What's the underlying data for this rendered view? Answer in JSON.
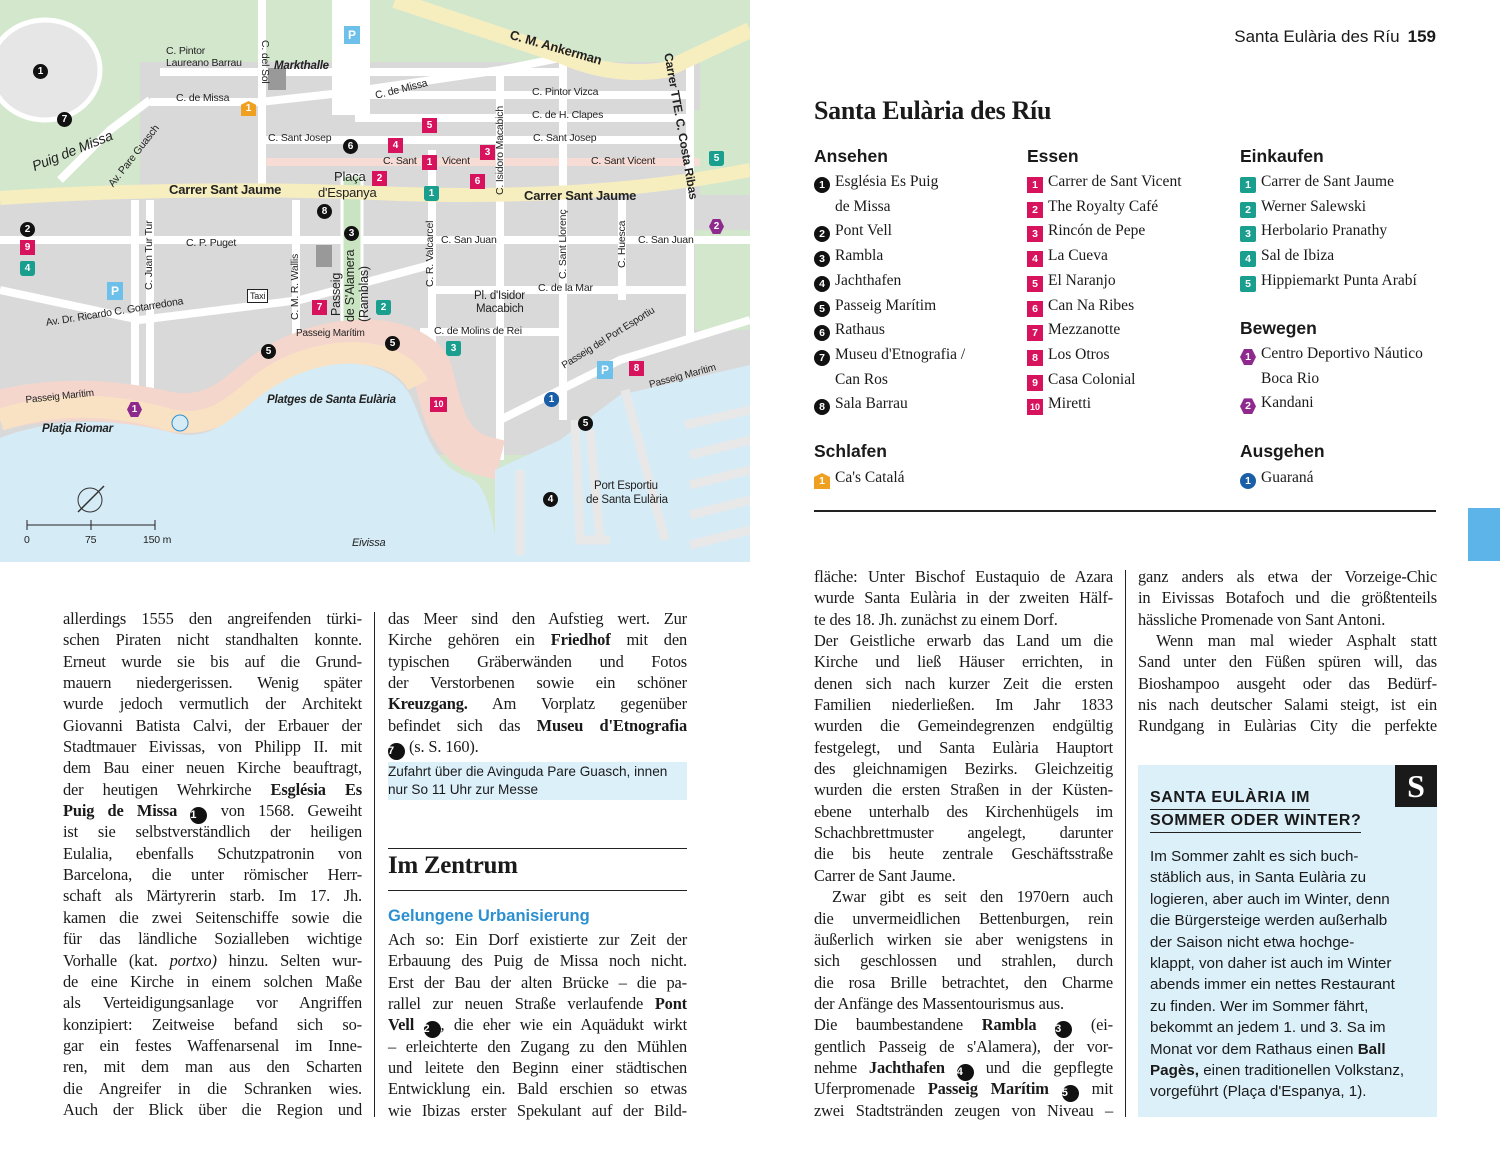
{
  "header": {
    "running_title": "Santa Eulària des Ríu",
    "page_number": "159"
  },
  "colors": {
    "sight": "#111111",
    "eat": "#d8135e",
    "shop": "#1a9e8e",
    "move": "#8e2a8e",
    "sleep": "#f0a020",
    "out": "#1b5ea8",
    "accent": "#2b8fd0",
    "tab": "#5cb4e8",
    "box": "#dcf0fa"
  },
  "map": {
    "labels": [
      "C. Pintor",
      "Laureano Barrau",
      "C. del Sol",
      "Markthalle",
      "C. M. Ankerman",
      "Carrer TTE. C. Costa Ribas",
      "C. de Missa",
      "C. de Missa",
      "C. Pintor Vizca",
      "C. de H. Clapes",
      "C. Sant Josep",
      "C. Sant Josep",
      "C. Sant",
      "Vicent",
      "C. Sant Vicent",
      "Puig de Missa",
      "Av. Pare Guasch",
      "Carrer Sant Jaume",
      "Carrer Sant Jaume",
      "Plaça",
      "d'Espanya",
      "C. Isidoro Macabich",
      "C. Juan Tur Tur",
      "C. P. Puget",
      "C. M. R. Wallis",
      "Passeig",
      "de S'Alamera",
      "(Ramblas)",
      "C. R. Valcarcel",
      "C. San Juan",
      "C. San Juan",
      "C. Sant Llorenç",
      "C. Huesca",
      "Taxi",
      "Pl. d'Isidor",
      "Macabich",
      "C. de la Mar",
      "Av. Dr. Ricardo C. Gotarredona",
      "Passeig Marítim",
      "Passeig Marítim",
      "Passeig Marítim",
      "C. de Molins de Rei",
      "Passeig del Port Esportiu",
      "Platges de Santa Eulària",
      "Platja Riomar",
      "Port Esportiu",
      "de Santa Eulària",
      "Eivissa"
    ],
    "scale": [
      "0",
      "75",
      "150 m"
    ],
    "parking": "P",
    "markers": {
      "sight": [
        "1",
        "7",
        "6",
        "8",
        "3",
        "2",
        "5",
        "5",
        "5",
        "4"
      ],
      "eat": [
        "5",
        "4",
        "1",
        "3",
        "2",
        "6",
        "9",
        "7",
        "10",
        "8"
      ],
      "shop": [
        "1",
        "5",
        "4",
        "2",
        "3"
      ],
      "move": [
        "1",
        "2"
      ],
      "sleep": [
        "1"
      ],
      "out": [
        "1"
      ]
    }
  },
  "title": "Santa Eulària des Ríu",
  "legend": {
    "ansehen": {
      "heading": "Ansehen",
      "items": [
        [
          "1",
          "Església Es Puig",
          "de Missa"
        ],
        [
          "2",
          "Pont Vell"
        ],
        [
          "3",
          "Rambla"
        ],
        [
          "4",
          "Jachthafen"
        ],
        [
          "5",
          "Passeig Marítim"
        ],
        [
          "6",
          "Rathaus"
        ],
        [
          "7",
          "Museu d'Etnografia /",
          "Can Ros"
        ],
        [
          "8",
          "Sala Barrau"
        ]
      ]
    },
    "essen": {
      "heading": "Essen",
      "items": [
        [
          "1",
          "Carrer de Sant Vicent"
        ],
        [
          "2",
          "The Royalty Café"
        ],
        [
          "3",
          "Rincón de Pepe"
        ],
        [
          "4",
          "La Cueva"
        ],
        [
          "5",
          "El Naranjo"
        ],
        [
          "6",
          "Can Na Ribes"
        ],
        [
          "7",
          "Mezzanotte"
        ],
        [
          "8",
          "Los Otros"
        ],
        [
          "9",
          "Casa Colonial"
        ],
        [
          "10",
          "Miretti"
        ]
      ]
    },
    "einkaufen": {
      "heading": "Einkaufen",
      "items": [
        [
          "1",
          "Carrer de Sant Jaume"
        ],
        [
          "2",
          "Werner Salewski"
        ],
        [
          "3",
          "Herbolario Pranathy"
        ],
        [
          "4",
          "Sal de Ibiza"
        ],
        [
          "5",
          "Hippiemarkt Punta Arabí"
        ]
      ]
    },
    "bewegen": {
      "heading": "Bewegen",
      "items": [
        [
          "1",
          "Centro Deportivo Náutico",
          "Boca Rio"
        ],
        [
          "2",
          "Kandani"
        ]
      ]
    },
    "schlafen": {
      "heading": "Schlafen",
      "items": [
        [
          "1",
          "Ca's Catalá"
        ]
      ]
    },
    "ausgehen": {
      "heading": "Ausgehen",
      "items": [
        [
          "1",
          "Guaraná"
        ]
      ]
    }
  },
  "col1": [
    "allerdings 1555 den angreifenden türki-",
    "schen Piraten nicht standhalten konnte.",
    "Erneut wurde sie bis auf die Grund-",
    "mauern niedergerissen. Wenig später",
    "wurde jedoch vermutlich der Architekt",
    "Giovanni Batista Calvi, der Erbauer der",
    "Stadtmauer Eivissas, von Philipp II. mit",
    "dem Bau einer neuen Kirche beauftragt,",
    [
      {
        "t": "der heutigen Wehrkirche "
      },
      {
        "t": "Església Es",
        "s": "b"
      }
    ],
    [
      {
        "t": "Puig de Missa",
        "s": "b"
      },
      {
        "t": " "
      },
      {
        "t": "1",
        "s": "n"
      },
      {
        "t": " von 1568. Geweiht"
      }
    ],
    "ist sie selbstverständlich der heiligen",
    "Eulalia, ebenfalls Schutzpatronin von",
    "Barcelona, die unter römischer Herr-",
    "schaft als Märtyrerin starb. Im 17. Jh.",
    "kamen die zwei Seitenschiffe sowie die",
    "für das ländliche Sozialleben wichtige",
    [
      {
        "t": "Vorhalle (kat. "
      },
      {
        "t": "portxo)",
        "s": "i"
      },
      {
        "t": " hinzu. Selten wur-"
      }
    ],
    "de eine Kirche in einem solchen Maße",
    "als Verteidigungsanlage vor Angriffen",
    "konzipiert: Zeitweise befand sich so-",
    "gar ein festes Waffenarsenal im Inne-",
    "ren, mit dem man aus den Scharten",
    "die Angreifer in die Schranken wies.",
    "Auch der Blick über die Region und"
  ],
  "col2a": [
    "das Meer sind den Aufstieg wert. Zur",
    [
      {
        "t": "Kirche gehören ein "
      },
      {
        "t": "Friedhof",
        "s": "b"
      },
      {
        "t": " mit den"
      }
    ],
    "typischen Gräberwänden und Fotos",
    "der Verstorbenen sowie ein schöner",
    [
      {
        "t": "Kreuzgang.",
        "s": "b"
      },
      {
        "t": " Am Vorplatz gegenüber"
      }
    ],
    [
      {
        "t": "befindet sich das "
      },
      {
        "t": "Museu d'Etnografia",
        "s": "b"
      }
    ],
    [
      {
        "t": "7",
        "s": "n"
      },
      {
        "t": " (s. S. 160)."
      }
    ]
  ],
  "info": [
    "Zufahrt über die Avinguda Pare Guasch, innen",
    "nur So 11 Uhr zur Messe"
  ],
  "section_heading": "Im Zentrum",
  "subheading": "Gelungene Urbanisierung",
  "col2b": [
    "Ach so: Ein Dorf existierte zur Zeit der",
    "Erbauung des Puig de Missa noch nicht.",
    "Erst der Bau der alten Brücke – die pa-",
    [
      {
        "t": "rallel zur neuen Straße verlaufende "
      },
      {
        "t": "Pont",
        "s": "b"
      }
    ],
    [
      {
        "t": "Vell",
        "s": "b"
      },
      {
        "t": " "
      },
      {
        "t": "2",
        "s": "n"
      },
      {
        "t": ", die eher wie ein Aquädukt wirkt"
      }
    ],
    "– erleichterte den Zugang zu den Mühlen",
    "und leitete den Beginn einer städtischen",
    "Entwicklung ein. Bald erschien so etwas",
    "wie Ibizas erster Spekulant auf der Bild-"
  ],
  "col3": [
    "fläche: Unter Bischof Eustaquio de Azara",
    "wurde Santa Eulària in der zweiten Hälf-",
    "te des 18. Jh. zunächst zu einem Dorf.",
    "Der Geistliche erwarb das Land um die",
    "Kirche und ließ Häuser errichten, in",
    "denen sich nach kurzer Zeit die ersten",
    "Familien niederließen. Im Jahr 1833",
    "wurden die Gemeindegrenzen endgültig",
    "festgelegt, und Santa Eulària Hauptort",
    "des gleichnamigen Bezirks. Gleichzeitig",
    "wurden die ersten Straßen in der Küsten-",
    "ebene unterhalb des Kirchenhügels im",
    "Schachbrettmuster angelegt, darunter",
    "die bis heute zentrale Geschäftsstraße",
    "Carrer de Sant Jaume.",
    "Zwar gibt es seit den 1970ern auch",
    "die unvermeidlichen Bettenburgen, rein",
    "äußerlich wirken sie aber wenigstens in",
    "sich geschlossen und strahlen, durch",
    "die rosa Brille betrachtet, den Charme",
    "der Anfänge des Massentourismus aus.",
    [
      {
        "t": "Die baumbestandene "
      },
      {
        "t": "Rambla",
        "s": "b"
      },
      {
        "t": " "
      },
      {
        "t": "3",
        "s": "n"
      },
      {
        "t": " (ei-"
      }
    ],
    "gentlich Passeig de s'Alamera), der vor-",
    [
      {
        "t": "nehme "
      },
      {
        "t": "Jachthafen",
        "s": "b"
      },
      {
        "t": " "
      },
      {
        "t": "4",
        "s": "n"
      },
      {
        "t": " und die gepflegte"
      }
    ],
    [
      {
        "t": "Uferpromenade "
      },
      {
        "t": "Passeig Marítim",
        "s": "b"
      },
      {
        "t": " "
      },
      {
        "t": "5",
        "s": "n"
      },
      {
        "t": " mit"
      }
    ],
    "zwei Stadtstränden zeugen von Niveau –"
  ],
  "col4": [
    "ganz anders als etwa der Vorzeige-Chic",
    "in Eivissas Botafoch und die größtenteils",
    "hässliche Promenade von Sant Antoni.",
    "Wenn man mal wieder Asphalt statt",
    "Sand unter den Füßen spüren will, das",
    "Bioshampoo ausgeht oder das Bedürf-",
    "nis nach deutscher Salami steigt, ist ein",
    "Rundgang in Eulàrias City die perfekte"
  ],
  "box": {
    "badge": "S",
    "title": [
      "SANTA EULÀRIA IM",
      "SOMMER ODER WINTER?"
    ],
    "lines": [
      "Im Sommer zahlt es sich buch-",
      "stäblich aus, in Santa Eulària zu",
      "logieren, aber auch im Winter, denn",
      "die Bürgersteige werden außerhalb",
      "der Saison nicht etwa hochge-",
      "klappt, von daher ist auch im Winter",
      "abends immer ein nettes Restaurant",
      "zu finden. Wer im Sommer fährt,",
      "bekommt an jedem 1. und 3. Sa im",
      [
        {
          "t": "Monat vor dem Rathaus einen "
        },
        {
          "t": "Ball",
          "s": "b"
        }
      ],
      [
        {
          "t": "Pagès,",
          "s": "b"
        },
        {
          "t": " einen traditionellen Volkstanz,"
        }
      ],
      "vorgeführt (Plaça d'Espanya, 1)."
    ]
  }
}
